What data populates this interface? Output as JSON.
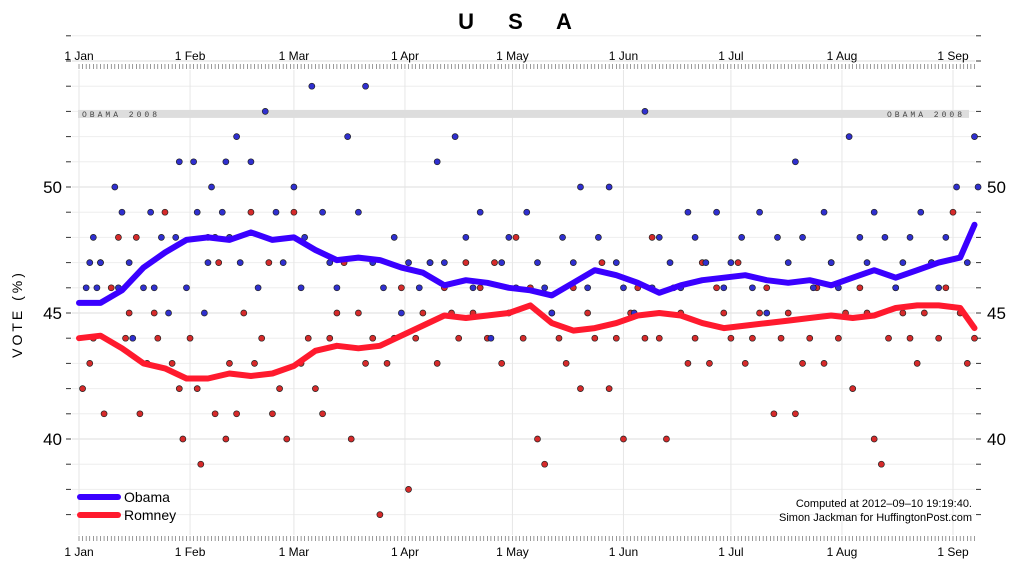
{
  "chart_data": {
    "type": "scatter",
    "title": "U S A",
    "ylabel": "VOTE (%)",
    "xlabel": "",
    "xlim": [
      0,
      252
    ],
    "ylim": [
      36.5,
      57
    ],
    "x_ticks": [
      {
        "label": "1 Jan",
        "day": 0
      },
      {
        "label": "1 Feb",
        "day": 31
      },
      {
        "label": "1 Mar",
        "day": 60
      },
      {
        "label": "1 Apr",
        "day": 91
      },
      {
        "label": "1 May",
        "day": 121
      },
      {
        "label": "1 Jun",
        "day": 152
      },
      {
        "label": "1 Jul",
        "day": 182
      },
      {
        "label": "1 Aug",
        "day": 213
      },
      {
        "label": "1 Sep",
        "day": 244
      }
    ],
    "y_ticks": [
      40,
      45,
      50
    ],
    "reference_band": {
      "label": "OBAMA 2008",
      "value": 52.9
    },
    "legend": {
      "position": "bottom-left",
      "entries": [
        {
          "name": "Obama",
          "color": "#3a00ff"
        },
        {
          "name": "Romney",
          "color": "#ff1a2e"
        }
      ]
    },
    "credit_lines": [
      "Computed at 2012–09–10 19:19:40.",
      "Simon Jackman for HuffingtonPost.com"
    ],
    "colors": {
      "obama": "#3a00ff",
      "romney": "#ff1a2e",
      "point_obama": "#2f2fcf",
      "point_romney": "#d62a2a",
      "band": "#dddddd"
    },
    "series": [
      {
        "name": "Obama",
        "type": "line",
        "x": [
          0,
          6,
          12,
          18,
          24,
          30,
          36,
          42,
          48,
          54,
          60,
          66,
          72,
          78,
          84,
          90,
          96,
          102,
          108,
          114,
          120,
          126,
          132,
          138,
          144,
          150,
          156,
          162,
          168,
          174,
          180,
          186,
          192,
          198,
          204,
          210,
          216,
          222,
          228,
          234,
          240,
          246,
          250
        ],
        "values": [
          45.4,
          45.4,
          45.9,
          46.8,
          47.4,
          47.9,
          48.0,
          47.9,
          48.2,
          47.9,
          48.0,
          47.5,
          47.1,
          47.2,
          47.1,
          46.8,
          46.6,
          46.1,
          46.3,
          46.2,
          46.0,
          45.9,
          45.7,
          46.2,
          46.7,
          46.5,
          46.2,
          45.8,
          46.1,
          46.3,
          46.4,
          46.5,
          46.3,
          46.2,
          46.3,
          46.1,
          46.4,
          46.7,
          46.4,
          46.7,
          47.0,
          47.2,
          48.5
        ]
      },
      {
        "name": "Romney",
        "type": "line",
        "x": [
          0,
          6,
          12,
          18,
          24,
          30,
          36,
          42,
          48,
          54,
          60,
          66,
          72,
          78,
          84,
          90,
          96,
          102,
          108,
          114,
          120,
          126,
          132,
          138,
          144,
          150,
          156,
          162,
          168,
          174,
          180,
          186,
          192,
          198,
          204,
          210,
          216,
          222,
          228,
          234,
          240,
          246,
          250
        ],
        "values": [
          44.0,
          44.1,
          43.6,
          43.0,
          42.8,
          42.4,
          42.4,
          42.6,
          42.5,
          42.6,
          42.9,
          43.5,
          43.7,
          43.6,
          43.7,
          44.1,
          44.5,
          44.9,
          44.8,
          44.9,
          45.0,
          45.3,
          44.6,
          44.3,
          44.4,
          44.6,
          44.9,
          45.0,
          44.9,
          44.6,
          44.4,
          44.5,
          44.6,
          44.7,
          44.8,
          44.9,
          44.8,
          44.9,
          45.2,
          45.3,
          45.3,
          45.2,
          44.4
        ]
      }
    ],
    "polls": {
      "obama_x": [
        2,
        3,
        4,
        5,
        6,
        10,
        11,
        12,
        14,
        15,
        18,
        20,
        21,
        23,
        25,
        27,
        28,
        30,
        32,
        33,
        35,
        36,
        37,
        38,
        40,
        41,
        42,
        44,
        45,
        48,
        50,
        52,
        55,
        57,
        60,
        62,
        63,
        65,
        68,
        70,
        72,
        75,
        78,
        80,
        82,
        85,
        88,
        90,
        92,
        95,
        98,
        100,
        102,
        105,
        108,
        110,
        112,
        115,
        118,
        120,
        122,
        125,
        128,
        130,
        132,
        135,
        138,
        140,
        142,
        145,
        148,
        150,
        152,
        155,
        158,
        160,
        162,
        165,
        168,
        170,
        172,
        175,
        178,
        180,
        182,
        185,
        188,
        190,
        192,
        195,
        198,
        200,
        202,
        205,
        208,
        210,
        212,
        215,
        218,
        220,
        222,
        225,
        228,
        230,
        232,
        235,
        238,
        240,
        242,
        245,
        248,
        250,
        251
      ],
      "obama_y": [
        46,
        47,
        48,
        46,
        47,
        50,
        46,
        49,
        47,
        44,
        46,
        49,
        46,
        48,
        45,
        48,
        51,
        46,
        51,
        49,
        45,
        47,
        50,
        48,
        49,
        51,
        48,
        52,
        47,
        51,
        46,
        53,
        49,
        47,
        50,
        46,
        48,
        54,
        49,
        47,
        46,
        52,
        49,
        54,
        47,
        46,
        48,
        45,
        47,
        46,
        47,
        51,
        47,
        52,
        48,
        46,
        49,
        44,
        47,
        48,
        46,
        49,
        47,
        46,
        45,
        48,
        47,
        50,
        46,
        48,
        50,
        47,
        46,
        45,
        53,
        46,
        48,
        47,
        46,
        49,
        48,
        47,
        49,
        46,
        47,
        48,
        46,
        49,
        45,
        48,
        47,
        51,
        48,
        46,
        49,
        47,
        46,
        52,
        48,
        47,
        49,
        48,
        46,
        47,
        48,
        49,
        47,
        46,
        48,
        50,
        47,
        52,
        50
      ],
      "romney_x": [
        1,
        3,
        4,
        6,
        7,
        9,
        11,
        13,
        14,
        16,
        17,
        19,
        21,
        22,
        24,
        26,
        28,
        29,
        31,
        33,
        34,
        36,
        38,
        39,
        41,
        42,
        44,
        46,
        48,
        49,
        51,
        53,
        54,
        56,
        58,
        60,
        62,
        64,
        66,
        68,
        70,
        72,
        74,
        76,
        78,
        80,
        82,
        84,
        86,
        88,
        90,
        92,
        94,
        96,
        98,
        100,
        102,
        104,
        106,
        108,
        110,
        112,
        114,
        116,
        118,
        120,
        122,
        124,
        126,
        128,
        130,
        132,
        134,
        136,
        138,
        140,
        142,
        144,
        146,
        148,
        150,
        152,
        154,
        156,
        158,
        160,
        162,
        164,
        166,
        168,
        170,
        172,
        174,
        176,
        178,
        180,
        182,
        184,
        186,
        188,
        190,
        192,
        194,
        196,
        198,
        200,
        202,
        204,
        206,
        208,
        210,
        212,
        214,
        216,
        218,
        220,
        222,
        224,
        226,
        228,
        230,
        232,
        234,
        236,
        238,
        240,
        242,
        244,
        246,
        248,
        250
      ],
      "romney_y": [
        42,
        43,
        44,
        47,
        41,
        46,
        48,
        44,
        45,
        48,
        41,
        43,
        45,
        44,
        49,
        43,
        42,
        40,
        44,
        42,
        39,
        48,
        41,
        47,
        40,
        43,
        41,
        45,
        49,
        43,
        44,
        47,
        41,
        42,
        40,
        49,
        43,
        44,
        42,
        41,
        44,
        45,
        47,
        40,
        45,
        43,
        44,
        37,
        43,
        44,
        46,
        38,
        44,
        45,
        47,
        43,
        46,
        45,
        44,
        47,
        45,
        46,
        44,
        47,
        43,
        45,
        48,
        44,
        46,
        40,
        39,
        45,
        44,
        43,
        46,
        42,
        45,
        44,
        47,
        42,
        44,
        40,
        45,
        46,
        44,
        48,
        44,
        40,
        46,
        45,
        43,
        44,
        47,
        43,
        46,
        45,
        44,
        47,
        43,
        44,
        45,
        46,
        41,
        44,
        45,
        41,
        43,
        44,
        46,
        43,
        47,
        44,
        45,
        42,
        46,
        45,
        40,
        39,
        44,
        46,
        45,
        44,
        43,
        45,
        47,
        44,
        46,
        49,
        45,
        43,
        44
      ]
    }
  }
}
